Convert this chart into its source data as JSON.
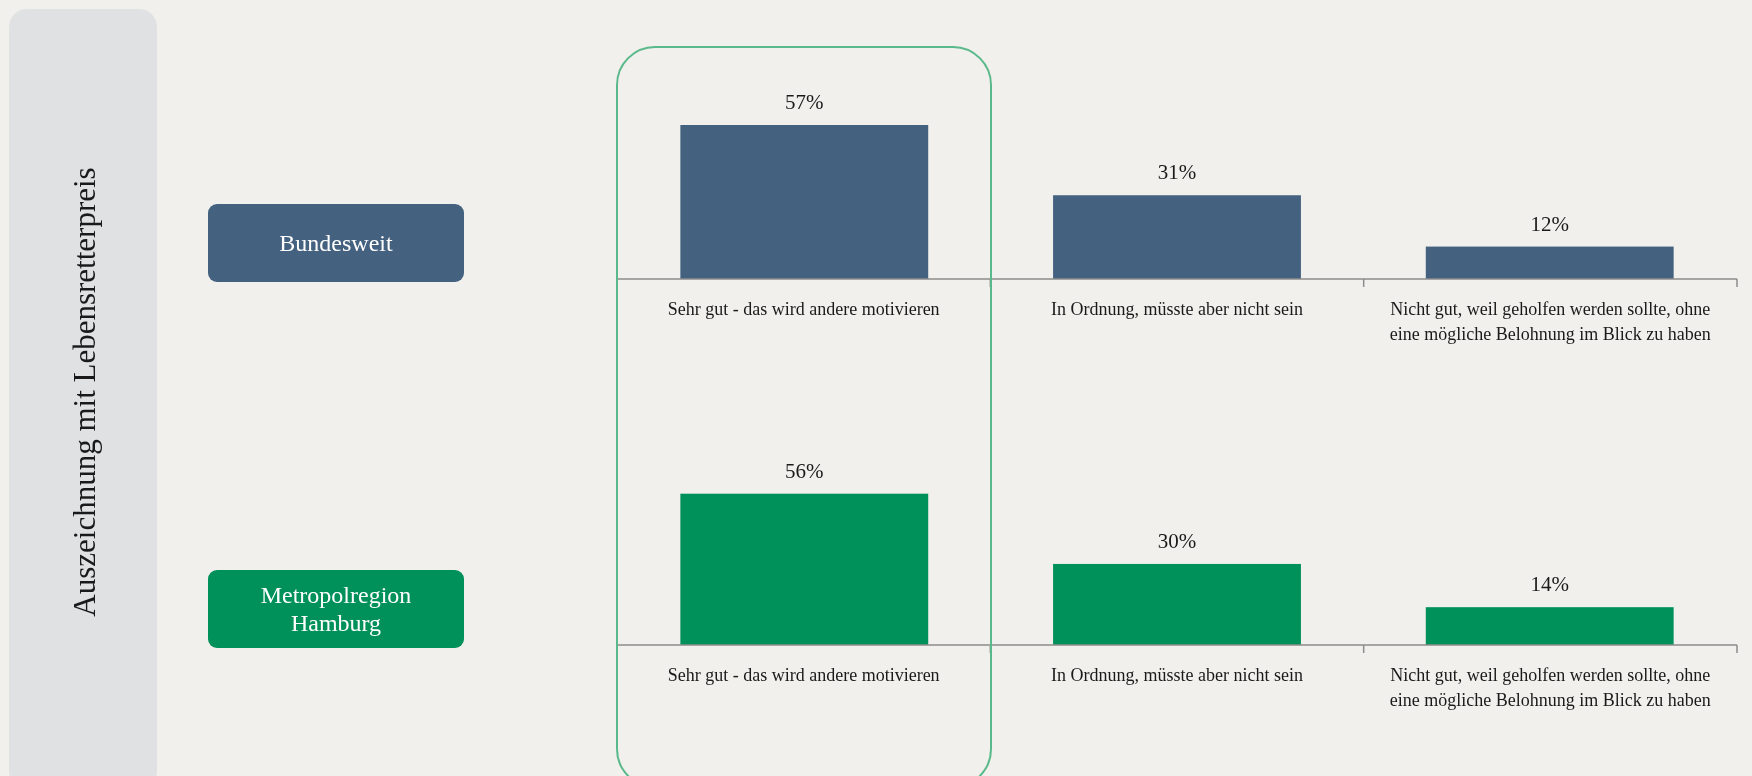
{
  "chart_data": [
    {
      "type": "bar",
      "annotations": [
        "Auszeichnung mit Lebensretterpreis"
      ],
      "categories": [
        "Sehr gut - das wird andere motivieren",
        "In Ordnung, müsste aber nicht sein",
        "Nicht gut, weil geholfen werden sollte, ohne eine mögliche Belohnung im Blick zu haben"
      ],
      "series": [
        {
          "name": "Bundesweit",
          "color": "#44617f",
          "values": [
            57,
            31,
            12
          ],
          "value_labels": [
            "57%",
            "31%",
            "12%"
          ]
        }
      ],
      "legend": "left"
    },
    {
      "type": "bar",
      "categories": [
        "Sehr gut - das wird andere motivieren",
        "In Ordnung, müsste aber nicht sein",
        "Nicht gut, weil geholfen werden sollte, ohne eine mögliche Belohnung im Blick zu haben"
      ],
      "series": [
        {
          "name": "Metropolregion Hamburg",
          "color": "#00915a",
          "values": [
            56,
            30,
            14
          ],
          "value_labels": [
            "56%",
            "30%",
            "14%"
          ]
        }
      ],
      "legend": "left"
    }
  ]
}
